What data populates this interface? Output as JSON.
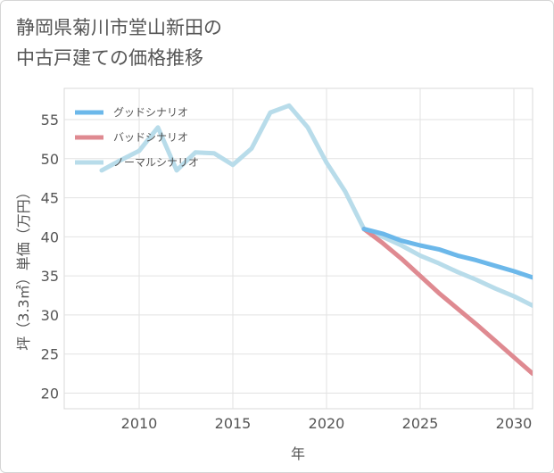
{
  "chart_data": {
    "type": "line",
    "title_lines": [
      "静岡県菊川市堂山新田の",
      "中古戸建ての価格推移"
    ],
    "xlabel": "年",
    "ylabel": "坪（3.3㎡）単価（万円）",
    "xlim": [
      2006,
      2031
    ],
    "ylim": [
      18,
      59
    ],
    "xticks": [
      2010,
      2015,
      2020,
      2025,
      2030
    ],
    "yticks": [
      20,
      25,
      30,
      35,
      40,
      45,
      50,
      55
    ],
    "legend_position": "top-left",
    "series": [
      {
        "name": "グッドシナリオ",
        "color": "#6cb8ea",
        "x": [
          2022,
          2023,
          2024,
          2025,
          2026,
          2027,
          2028,
          2029,
          2030,
          2031
        ],
        "y": [
          41.0,
          40.4,
          39.5,
          38.9,
          38.4,
          37.6,
          37.0,
          36.3,
          35.6,
          34.8
        ]
      },
      {
        "name": "バッドシナリオ",
        "color": "#df8a91",
        "x": [
          2022,
          2023,
          2024,
          2025,
          2026,
          2027,
          2028,
          2029,
          2030,
          2031
        ],
        "y": [
          41.0,
          39.2,
          37.2,
          35.0,
          32.8,
          30.8,
          28.8,
          26.7,
          24.6,
          22.5
        ]
      },
      {
        "name": "ノーマルシナリオ",
        "color": "#b8dcea",
        "x": [
          2008,
          2009,
          2010,
          2011,
          2012,
          2013,
          2014,
          2015,
          2016,
          2017,
          2018,
          2019,
          2020,
          2021,
          2022,
          2023,
          2024,
          2025,
          2026,
          2027,
          2028,
          2029,
          2030,
          2031
        ],
        "y": [
          48.5,
          49.8,
          51.0,
          54.0,
          48.5,
          50.8,
          50.7,
          49.2,
          51.3,
          55.9,
          56.8,
          54.0,
          49.5,
          45.8,
          41.0,
          40.0,
          38.9,
          37.6,
          36.6,
          35.5,
          34.5,
          33.4,
          32.4,
          31.2
        ]
      }
    ]
  }
}
